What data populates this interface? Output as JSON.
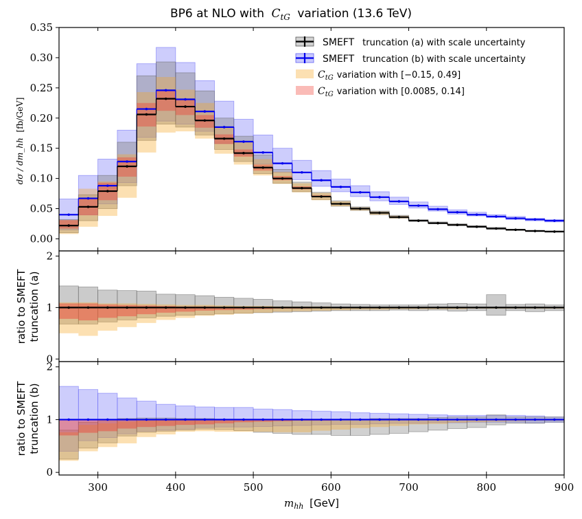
{
  "chart_data": {
    "type": "histogram",
    "title": "BP6 at NLO with C_tG variation (13.6 TeV)",
    "title_parts": {
      "pre": "BP6 at NLO with",
      "C": "C",
      "sub": "tG",
      "post": "variation (13.6 TeV)"
    },
    "xlabel": {
      "var": "m",
      "sub": "hh",
      "unit": "[GeV]"
    },
    "xlim": [
      250,
      900
    ],
    "xticks": [
      "300",
      "400",
      "500",
      "600",
      "700",
      "800",
      "900"
    ],
    "bin_edges": [
      250,
      275,
      300,
      325,
      350,
      375,
      400,
      425,
      450,
      475,
      500,
      525,
      550,
      575,
      600,
      625,
      650,
      675,
      700,
      725,
      750,
      775,
      800,
      825,
      850,
      875,
      900
    ],
    "colors": {
      "a": "#000000",
      "b": "#0000ee",
      "orange": "#f5a623",
      "red": "#f03c32",
      "grey": "#8c8c8c",
      "blue_fill": "#6464f5"
    },
    "main": {
      "ylabel": {
        "lhs": "dσ / dm_hh",
        "unit": "[fb/GeV]"
      },
      "ylim": [
        -0.02,
        0.35
      ],
      "yticks": [
        "0.00",
        "0.05",
        "0.10",
        "0.15",
        "0.20",
        "0.25",
        "0.30",
        "0.35"
      ],
      "legend": [
        {
          "label": "SMEFT",
          "extra": "truncation (a) with scale uncertainty",
          "style": "a"
        },
        {
          "label": "SMEFT",
          "extra": "truncation (b) with scale uncertainty",
          "style": "b"
        },
        {
          "label": "C",
          "sub": "tG",
          "extra": "variation with [−0.15, 0.49]",
          "style": "orange"
        },
        {
          "label": "C",
          "sub": "tG",
          "extra": "variation with [0.0085, 0.14]",
          "style": "red"
        }
      ],
      "series_a": {
        "name": "SMEFT truncation (a)",
        "values": [
          0.022,
          0.053,
          0.079,
          0.12,
          0.206,
          0.232,
          0.219,
          0.196,
          0.166,
          0.142,
          0.118,
          0.1,
          0.084,
          0.07,
          0.058,
          0.05,
          0.043,
          0.036,
          0.03,
          0.026,
          0.023,
          0.02,
          0.017,
          0.015,
          0.013,
          0.012
        ]
      },
      "series_a_band": {
        "lo": [
          0.01,
          0.03,
          0.05,
          0.088,
          0.163,
          0.19,
          0.185,
          0.172,
          0.148,
          0.128,
          0.108,
          0.092,
          0.078,
          0.065,
          0.054,
          0.047,
          0.04,
          0.034,
          0.029,
          0.025,
          0.022,
          0.019,
          0.016,
          0.014,
          0.012,
          0.011
        ],
        "hi": [
          0.032,
          0.073,
          0.105,
          0.16,
          0.27,
          0.293,
          0.275,
          0.245,
          0.2,
          0.17,
          0.139,
          0.115,
          0.094,
          0.077,
          0.063,
          0.053,
          0.046,
          0.039,
          0.032,
          0.028,
          0.025,
          0.022,
          0.019,
          0.016,
          0.014,
          0.013
        ]
      },
      "series_b": {
        "name": "SMEFT truncation (b)",
        "values": [
          0.04,
          0.067,
          0.088,
          0.128,
          0.215,
          0.246,
          0.231,
          0.211,
          0.185,
          0.161,
          0.143,
          0.125,
          0.11,
          0.097,
          0.086,
          0.077,
          0.069,
          0.062,
          0.055,
          0.049,
          0.044,
          0.04,
          0.037,
          0.034,
          0.032,
          0.03
        ]
      },
      "series_b_band": {
        "lo": [
          0.015,
          0.04,
          0.058,
          0.093,
          0.168,
          0.195,
          0.19,
          0.178,
          0.158,
          0.139,
          0.124,
          0.11,
          0.098,
          0.087,
          0.078,
          0.07,
          0.063,
          0.057,
          0.051,
          0.046,
          0.041,
          0.038,
          0.035,
          0.032,
          0.03,
          0.028
        ],
        "hi": [
          0.066,
          0.105,
          0.132,
          0.18,
          0.29,
          0.317,
          0.292,
          0.262,
          0.228,
          0.198,
          0.172,
          0.15,
          0.13,
          0.113,
          0.099,
          0.088,
          0.078,
          0.069,
          0.061,
          0.054,
          0.048,
          0.044,
          0.04,
          0.037,
          0.034,
          0.032
        ]
      },
      "orange_band": {
        "lo": [
          0.008,
          0.02,
          0.038,
          0.068,
          0.143,
          0.176,
          0.178,
          0.166,
          0.141,
          0.123,
          0.105,
          0.091,
          0.077,
          0.064,
          0.054,
          0.047,
          0.04,
          0.034,
          0.029,
          0.025,
          0.022,
          0.019,
          0.016,
          0.014,
          0.012,
          0.011
        ],
        "hi": [
          0.031,
          0.083,
          0.095,
          0.14,
          0.243,
          0.268,
          0.247,
          0.225,
          0.185,
          0.16,
          0.132,
          0.111,
          0.092,
          0.076,
          0.062,
          0.052,
          0.045,
          0.038,
          0.031,
          0.027,
          0.024,
          0.021,
          0.018,
          0.015,
          0.013,
          0.012
        ]
      },
      "red_band": {
        "lo": [
          0.017,
          0.039,
          0.064,
          0.103,
          0.186,
          0.212,
          0.205,
          0.184,
          0.157,
          0.136,
          0.113,
          0.097,
          0.082,
          0.069,
          0.057,
          0.049,
          0.042,
          0.035,
          0.03,
          0.026,
          0.023,
          0.02,
          0.017,
          0.015,
          0.013,
          0.012
        ],
        "hi": [
          0.031,
          0.068,
          0.093,
          0.135,
          0.225,
          0.246,
          0.23,
          0.205,
          0.173,
          0.148,
          0.123,
          0.104,
          0.087,
          0.072,
          0.059,
          0.051,
          0.044,
          0.037,
          0.031,
          0.027,
          0.024,
          0.021,
          0.018,
          0.015,
          0.013,
          0.012
        ]
      }
    },
    "ratio_a": {
      "ylabel": [
        "ratio to SMEFT",
        "truncation (a)"
      ],
      "ylim": [
        -0.05,
        2.1
      ],
      "yticks": [
        "0",
        "1",
        "2"
      ],
      "grey": {
        "lo": [
          0.68,
          0.68,
          0.72,
          0.76,
          0.8,
          0.83,
          0.85,
          0.86,
          0.88,
          0.89,
          0.9,
          0.91,
          0.92,
          0.93,
          0.94,
          0.94,
          0.94,
          0.95,
          0.94,
          0.95,
          0.93,
          0.94,
          0.85,
          0.94,
          0.92,
          0.94
        ],
        "hi": [
          1.42,
          1.4,
          1.34,
          1.33,
          1.32,
          1.26,
          1.25,
          1.23,
          1.2,
          1.18,
          1.16,
          1.13,
          1.11,
          1.09,
          1.07,
          1.06,
          1.05,
          1.05,
          1.05,
          1.07,
          1.08,
          1.07,
          1.25,
          1.06,
          1.07,
          1.05
        ]
      },
      "orange": {
        "lo": [
          0.5,
          0.45,
          0.55,
          0.62,
          0.7,
          0.76,
          0.8,
          0.84,
          0.86,
          0.88,
          0.9,
          0.92,
          0.93,
          0.94,
          0.95,
          0.96,
          0.96,
          0.97,
          0.97,
          0.97,
          0.97,
          0.98,
          0.98,
          0.98,
          0.98,
          0.98
        ],
        "hi": [
          1.1,
          1.1,
          1.08,
          1.08,
          1.07,
          1.06,
          1.05,
          1.05,
          1.04,
          1.03,
          1.03,
          1.02,
          1.02,
          1.02,
          1.01,
          1.01,
          1.01,
          1.01,
          1.01,
          1.01,
          1.01,
          1.01,
          1.01,
          1.01,
          1.01,
          1.01
        ]
      },
      "red": {
        "lo": [
          0.78,
          0.75,
          0.8,
          0.83,
          0.87,
          0.9,
          0.92,
          0.94,
          0.95,
          0.96,
          0.97,
          0.98,
          0.98,
          0.99,
          0.99,
          0.99,
          0.99,
          0.99,
          0.99,
          0.99,
          0.99,
          0.99,
          0.99,
          0.99,
          0.99,
          0.99
        ],
        "hi": [
          1.08,
          1.08,
          1.06,
          1.05,
          1.04,
          1.03,
          1.02,
          1.02,
          1.01,
          1.01,
          1.01,
          1.01,
          1.0,
          1.0,
          1.0,
          1.0,
          1.0,
          1.0,
          1.0,
          1.0,
          1.0,
          1.0,
          1.0,
          1.0,
          1.0,
          1.0
        ]
      }
    },
    "ratio_b": {
      "ylabel": [
        "ratio to SMEFT",
        "truncation (b)"
      ],
      "ylim": [
        -0.05,
        2.1
      ],
      "yticks": [
        "0",
        "1",
        "2"
      ],
      "blue": {
        "lo": [
          0.4,
          0.6,
          0.66,
          0.73,
          0.78,
          0.8,
          0.82,
          0.85,
          0.86,
          0.86,
          0.87,
          0.88,
          0.89,
          0.9,
          0.91,
          0.91,
          0.92,
          0.93,
          0.93,
          0.94,
          0.94,
          0.95,
          0.95,
          0.95,
          0.94,
          0.95
        ],
        "hi": [
          1.63,
          1.57,
          1.5,
          1.41,
          1.35,
          1.29,
          1.26,
          1.24,
          1.23,
          1.23,
          1.2,
          1.19,
          1.17,
          1.16,
          1.15,
          1.13,
          1.12,
          1.11,
          1.1,
          1.09,
          1.08,
          1.08,
          1.08,
          1.08,
          1.07,
          1.05
        ]
      },
      "grey": {
        "lo": [
          0.25,
          0.46,
          0.56,
          0.69,
          0.76,
          0.78,
          0.8,
          0.82,
          0.81,
          0.79,
          0.76,
          0.74,
          0.72,
          0.72,
          0.7,
          0.7,
          0.72,
          0.74,
          0.77,
          0.8,
          0.83,
          0.85,
          0.9,
          0.93,
          0.93,
          0.95
        ],
        "hi": [
          0.8,
          0.95,
          1.0,
          1.02,
          1.03,
          1.03,
          1.02,
          1.02,
          1.01,
          1.01,
          1.01,
          1.01,
          1.01,
          1.01,
          1.01,
          1.01,
          1.02,
          1.02,
          1.02,
          1.04,
          1.05,
          1.05,
          1.09,
          1.05,
          1.05,
          1.05
        ]
      },
      "orange": {
        "lo": [
          0.22,
          0.4,
          0.48,
          0.55,
          0.67,
          0.72,
          0.77,
          0.78,
          0.77,
          0.77,
          0.77,
          0.76,
          0.76,
          0.79,
          0.81,
          0.84,
          0.86,
          0.88,
          0.91,
          0.92,
          0.94,
          0.95,
          0.96,
          0.97,
          0.98,
          0.98
        ],
        "hi": [
          0.76,
          0.9,
          0.93,
          0.96,
          0.98,
          0.99,
          0.99,
          0.99,
          1.0,
          1.0,
          1.0,
          1.0,
          1.0,
          1.0,
          1.0,
          1.0,
          1.0,
          1.0,
          1.0,
          1.0,
          1.0,
          1.0,
          1.01,
          1.01,
          1.01,
          1.01
        ]
      },
      "red": {
        "lo": [
          0.7,
          0.75,
          0.78,
          0.83,
          0.86,
          0.88,
          0.9,
          0.91,
          0.93,
          0.95,
          0.96,
          0.97,
          0.98,
          0.98,
          0.99,
          0.99,
          0.99,
          0.99,
          0.99,
          0.99,
          0.99,
          0.99,
          0.99,
          0.99,
          0.99,
          0.99
        ],
        "hi": [
          1.0,
          1.0,
          1.0,
          1.0,
          1.0,
          1.0,
          1.0,
          1.0,
          1.0,
          1.0,
          1.0,
          1.0,
          1.0,
          1.0,
          1.0,
          1.0,
          1.0,
          1.0,
          1.0,
          1.0,
          1.0,
          1.0,
          1.0,
          1.0,
          1.0,
          1.0
        ]
      }
    }
  }
}
